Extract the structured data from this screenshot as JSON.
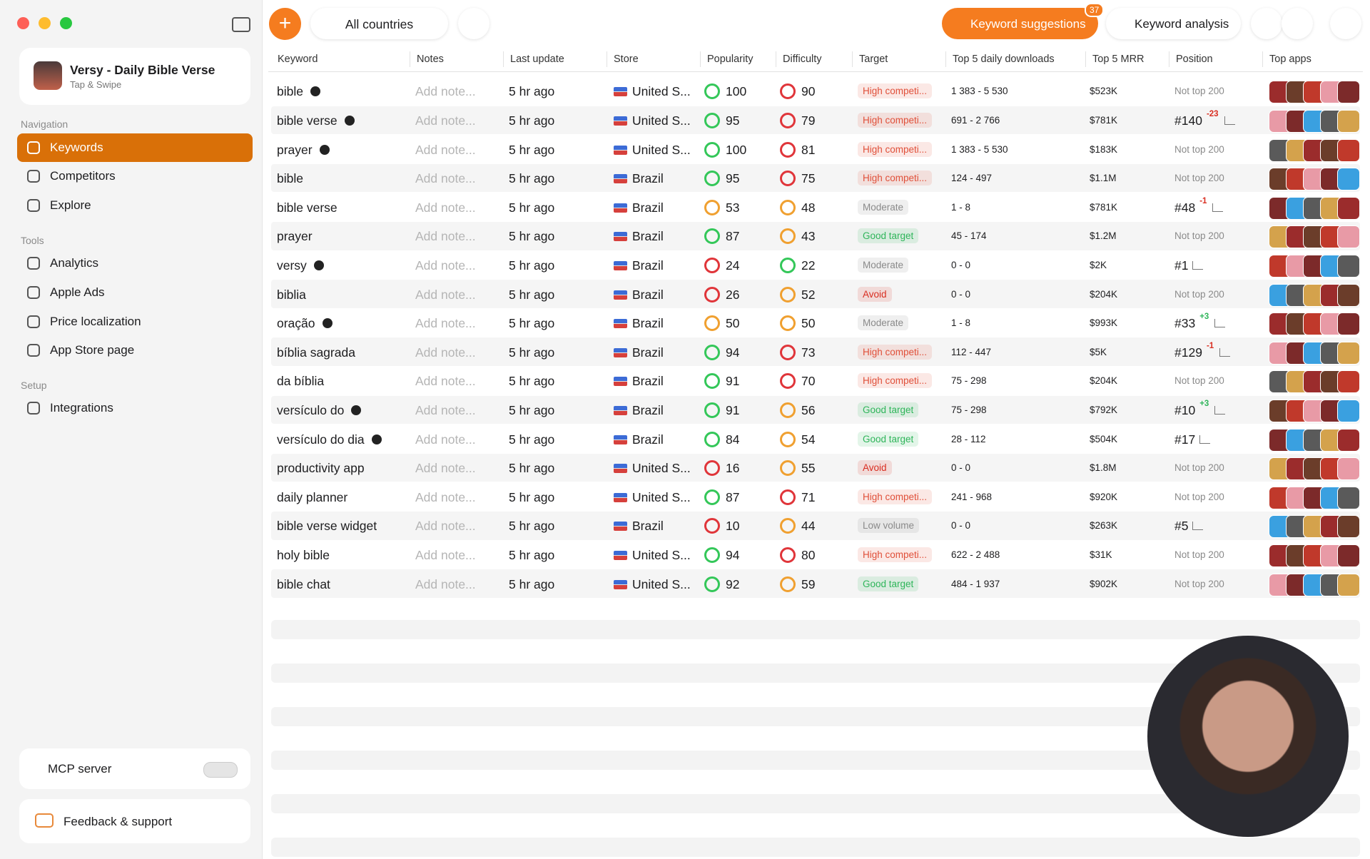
{
  "app": {
    "name": "Versy - Daily Bible Verse",
    "subtitle": "Tap & Swipe"
  },
  "sidebar": {
    "sections": [
      {
        "title": "Navigation",
        "items": [
          "Keywords",
          "Competitors",
          "Explore"
        ]
      },
      {
        "title": "Tools",
        "items": [
          "Analytics",
          "Apple Ads",
          "Price localization",
          "App Store page"
        ]
      },
      {
        "title": "Setup",
        "items": [
          "Integrations"
        ]
      }
    ],
    "mcp": "MCP server",
    "feedback": "Feedback & support"
  },
  "toolbar": {
    "country": "All countries",
    "suggestions": "Keyword suggestions",
    "suggestions_count": "37",
    "analysis": "Keyword analysis"
  },
  "table": {
    "columns": [
      "Keyword",
      "Notes",
      "Last update",
      "Store",
      "Popularity",
      "Difficulty",
      "Target",
      "Top 5 daily downloads",
      "Top 5 MRR",
      "Position",
      "Top apps"
    ],
    "rows": [
      {
        "keyword": "bible",
        "verified": true,
        "note": "Add note...",
        "updated": "5 hr ago",
        "store": "United S...",
        "popularity": 100,
        "pop_color": "#34c759",
        "difficulty": 90,
        "diff_color": "#e0353a",
        "target": "High competi...",
        "target_color": "#e0503a",
        "downloads": "1 383 - 5 530",
        "mrr": "$523K",
        "position": "Not top 200"
      },
      {
        "keyword": "bible verse",
        "verified": true,
        "note": "Add note...",
        "updated": "5 hr ago",
        "store": "United S...",
        "popularity": 95,
        "pop_color": "#34c759",
        "difficulty": 79,
        "diff_color": "#e0353a",
        "target": "High competi...",
        "target_color": "#e0503a",
        "downloads": "691 - 2 766",
        "mrr": "$781K",
        "position": "#140",
        "change": "-23",
        "change_color": "#d92d20"
      },
      {
        "keyword": "prayer",
        "verified": true,
        "note": "Add note...",
        "updated": "5 hr ago",
        "store": "United S...",
        "popularity": 100,
        "pop_color": "#34c759",
        "difficulty": 81,
        "diff_color": "#e0353a",
        "target": "High competi...",
        "target_color": "#e0503a",
        "downloads": "1 383 - 5 530",
        "mrr": "$183K",
        "position": "Not top 200"
      },
      {
        "keyword": "bible",
        "verified": false,
        "note": "Add note...",
        "updated": "5 hr ago",
        "store": "Brazil",
        "popularity": 95,
        "pop_color": "#34c759",
        "difficulty": 75,
        "diff_color": "#e0353a",
        "target": "High competi...",
        "target_color": "#e0503a",
        "downloads": "124 - 497",
        "mrr": "$1.1M",
        "position": "Not top 200"
      },
      {
        "keyword": "bible verse",
        "verified": false,
        "note": "Add note...",
        "updated": "5 hr ago",
        "store": "Brazil",
        "popularity": 53,
        "pop_color": "#f0a030",
        "difficulty": 48,
        "diff_color": "#f0a030",
        "target": "Moderate",
        "target_color": "#8a8a8a",
        "downloads": "1 - 8",
        "mrr": "$781K",
        "position": "#48",
        "change": "-1",
        "change_color": "#d92d20"
      },
      {
        "keyword": "prayer",
        "verified": false,
        "note": "Add note...",
        "updated": "5 hr ago",
        "store": "Brazil",
        "popularity": 87,
        "pop_color": "#34c759",
        "difficulty": 43,
        "diff_color": "#f0a030",
        "target": "Good target",
        "target_color": "#2fb55a",
        "downloads": "45 - 174",
        "mrr": "$1.2M",
        "position": "Not top 200"
      },
      {
        "keyword": "versy",
        "verified": true,
        "note": "Add note...",
        "updated": "5 hr ago",
        "store": "Brazil",
        "popularity": 24,
        "pop_color": "#e0353a",
        "difficulty": 22,
        "diff_color": "#34c759",
        "target": "Moderate",
        "target_color": "#8a8a8a",
        "downloads": "0 - 0",
        "mrr": "$2K",
        "position": "#1"
      },
      {
        "keyword": "biblia",
        "verified": false,
        "note": "Add note...",
        "updated": "5 hr ago",
        "store": "Brazil",
        "popularity": 26,
        "pop_color": "#e0353a",
        "difficulty": 52,
        "diff_color": "#f0a030",
        "target": "Avoid",
        "target_color": "#d92d20",
        "downloads": "0 - 0",
        "mrr": "$204K",
        "position": "Not top 200"
      },
      {
        "keyword": "oração",
        "verified": true,
        "note": "Add note...",
        "updated": "5 hr ago",
        "store": "Brazil",
        "popularity": 50,
        "pop_color": "#f0a030",
        "difficulty": 50,
        "diff_color": "#f0a030",
        "target": "Moderate",
        "target_color": "#8a8a8a",
        "downloads": "1 - 8",
        "mrr": "$993K",
        "position": "#33",
        "change": "+3",
        "change_color": "#2fb55a"
      },
      {
        "keyword": "bíblia sagrada",
        "verified": false,
        "note": "Add note...",
        "updated": "5 hr ago",
        "store": "Brazil",
        "popularity": 94,
        "pop_color": "#34c759",
        "difficulty": 73,
        "diff_color": "#e0353a",
        "target": "High competi...",
        "target_color": "#e0503a",
        "downloads": "112 - 447",
        "mrr": "$5K",
        "position": "#129",
        "change": "-1",
        "change_color": "#d92d20"
      },
      {
        "keyword": "da bíblia",
        "verified": false,
        "note": "Add note...",
        "updated": "5 hr ago",
        "store": "Brazil",
        "popularity": 91,
        "pop_color": "#34c759",
        "difficulty": 70,
        "diff_color": "#e0353a",
        "target": "High competi...",
        "target_color": "#e0503a",
        "downloads": "75 - 298",
        "mrr": "$204K",
        "position": "Not top 200"
      },
      {
        "keyword": "versículo do",
        "verified": true,
        "note": "Add note...",
        "updated": "5 hr ago",
        "store": "Brazil",
        "popularity": 91,
        "pop_color": "#34c759",
        "difficulty": 56,
        "diff_color": "#f0a030",
        "target": "Good target",
        "target_color": "#2fb55a",
        "downloads": "75 - 298",
        "mrr": "$792K",
        "position": "#10",
        "change": "+3",
        "change_color": "#2fb55a"
      },
      {
        "keyword": "versículo do dia",
        "verified": true,
        "note": "Add note...",
        "updated": "5 hr ago",
        "store": "Brazil",
        "popularity": 84,
        "pop_color": "#34c759",
        "difficulty": 54,
        "diff_color": "#f0a030",
        "target": "Good target",
        "target_color": "#2fb55a",
        "downloads": "28 - 112",
        "mrr": "$504K",
        "position": "#17"
      },
      {
        "keyword": "productivity app",
        "verified": false,
        "note": "Add note...",
        "updated": "5 hr ago",
        "store": "United S...",
        "popularity": 16,
        "pop_color": "#e0353a",
        "difficulty": 55,
        "diff_color": "#f0a030",
        "target": "Avoid",
        "target_color": "#d92d20",
        "downloads": "0 - 0",
        "mrr": "$1.8M",
        "position": "Not top 200"
      },
      {
        "keyword": "daily planner",
        "verified": false,
        "note": "Add note...",
        "updated": "5 hr ago",
        "store": "United S...",
        "popularity": 87,
        "pop_color": "#34c759",
        "difficulty": 71,
        "diff_color": "#e0353a",
        "target": "High competi...",
        "target_color": "#e0503a",
        "downloads": "241 - 968",
        "mrr": "$920K",
        "position": "Not top 200"
      },
      {
        "keyword": "bible verse widget",
        "verified": false,
        "note": "Add note...",
        "updated": "5 hr ago",
        "store": "Brazil",
        "popularity": 10,
        "pop_color": "#e0353a",
        "difficulty": 44,
        "diff_color": "#f0a030",
        "target": "Low volume",
        "target_color": "#8a8a8a",
        "downloads": "0 - 0",
        "mrr": "$263K",
        "position": "#5"
      },
      {
        "keyword": "holy bible",
        "verified": false,
        "note": "Add note...",
        "updated": "5 hr ago",
        "store": "United S...",
        "popularity": 94,
        "pop_color": "#34c759",
        "difficulty": 80,
        "diff_color": "#e0353a",
        "target": "High competi...",
        "target_color": "#e0503a",
        "downloads": "622 - 2 488",
        "mrr": "$31K",
        "position": "Not top 200"
      },
      {
        "keyword": "bible chat",
        "verified": false,
        "note": "Add note...",
        "updated": "5 hr ago",
        "store": "United S...",
        "popularity": 92,
        "pop_color": "#34c759",
        "difficulty": 59,
        "diff_color": "#f0a030",
        "target": "Good target",
        "target_color": "#2fb55a",
        "downloads": "484 - 1 937",
        "mrr": "$902K",
        "position": "Not top 200"
      }
    ]
  }
}
